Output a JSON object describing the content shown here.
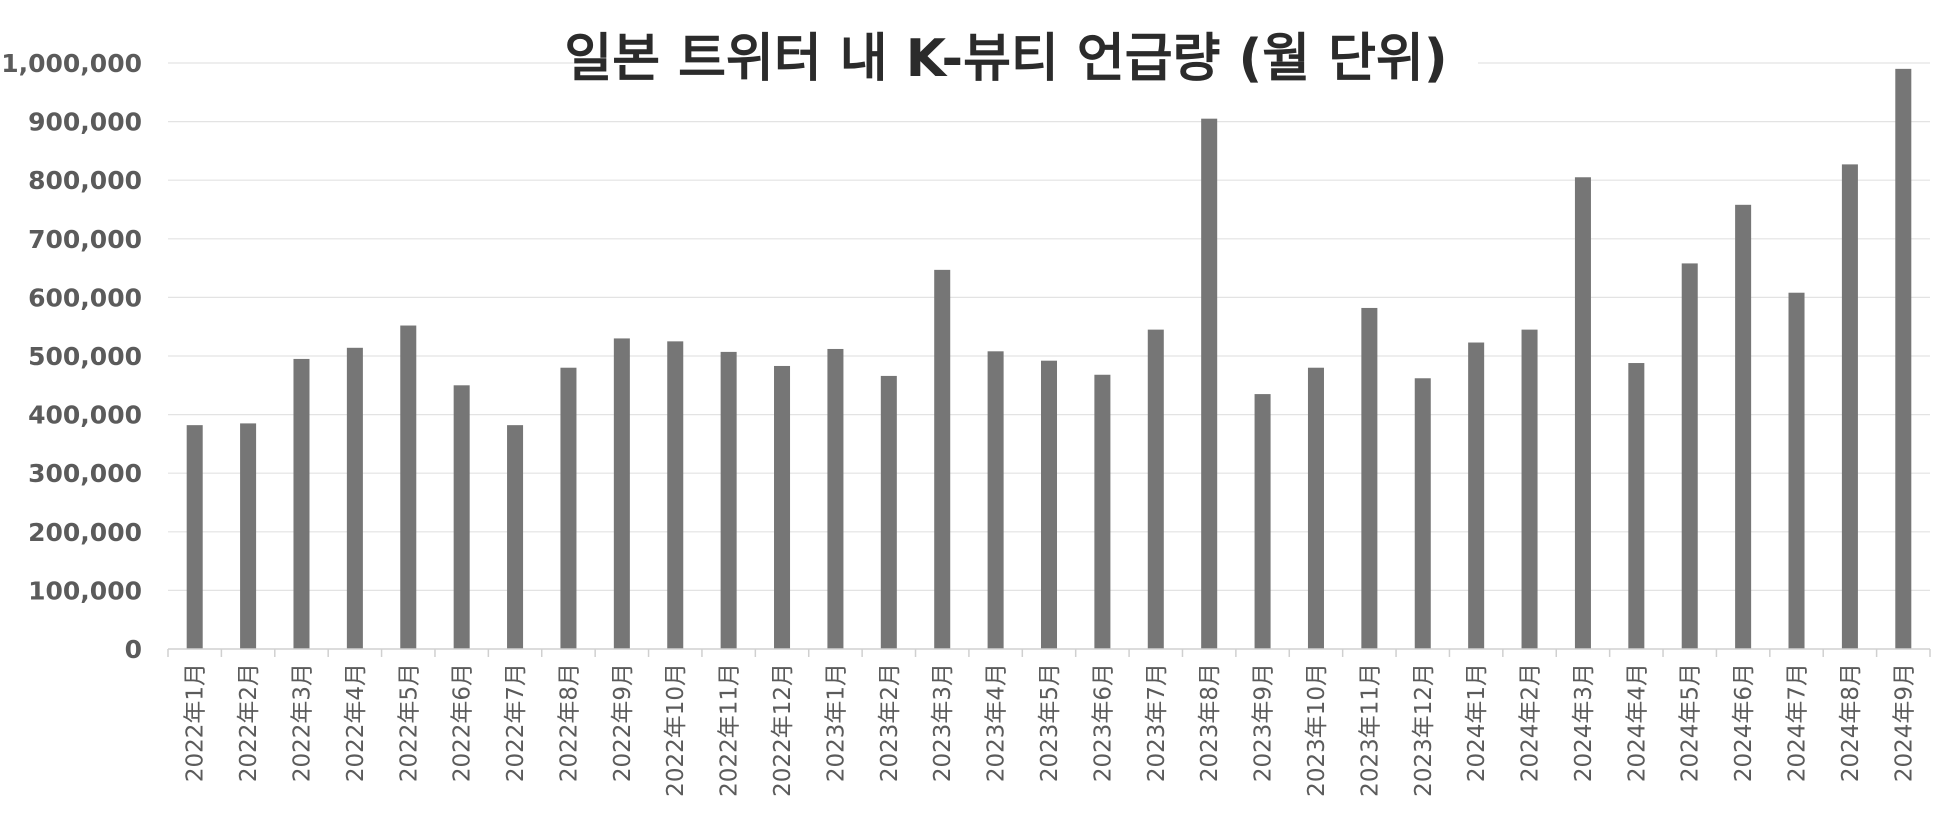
{
  "chart_data": {
    "type": "bar",
    "title": "일본 트위터 내 K-뷰티 언급량 (월 단위)",
    "xlabel": "",
    "ylabel": "",
    "ylim": [
      0,
      1000000
    ],
    "yticks": [
      "0",
      "100,000",
      "200,000",
      "300,000",
      "400,000",
      "500,000",
      "600,000",
      "700,000",
      "800,000",
      "900,000",
      "1,000,000"
    ],
    "grid": true,
    "bar_color": "#767676",
    "categories": [
      "2022年1月",
      "2022年2月",
      "2022年3月",
      "2022年4月",
      "2022年5月",
      "2022年6月",
      "2022年7月",
      "2022年8月",
      "2022年9月",
      "2022年10月",
      "2022年11月",
      "2022年12月",
      "2023年1月",
      "2023年2月",
      "2023年3月",
      "2023年4月",
      "2023年5月",
      "2023年6月",
      "2023年7月",
      "2023年8月",
      "2023年9月",
      "2023年10月",
      "2023年11月",
      "2023年12月",
      "2024年1月",
      "2024年2月",
      "2024年3月",
      "2024年4月",
      "2024年5月",
      "2024年6月",
      "2024年7月",
      "2024年8月",
      "2024年9月"
    ],
    "values": [
      382000,
      385000,
      495000,
      514000,
      552000,
      450000,
      382000,
      480000,
      530000,
      525000,
      507000,
      483000,
      512000,
      466000,
      647000,
      508000,
      492000,
      468000,
      545000,
      905000,
      435000,
      480000,
      582000,
      462000,
      523000,
      545000,
      805000,
      488000,
      658000,
      758000,
      608000,
      827000,
      990000
    ]
  }
}
